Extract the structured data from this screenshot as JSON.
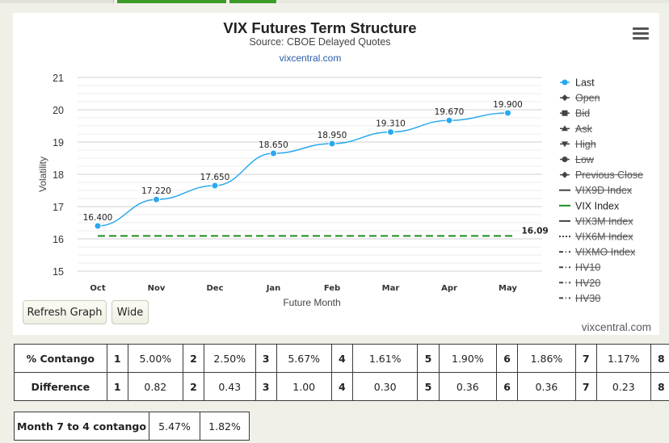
{
  "chart_data": {
    "type": "line",
    "title": "VIX Futures Term Structure",
    "subtitle": "Source: CBOE Delayed Quotes",
    "credit_link": "vixcentral.com",
    "xlabel": "Future Month",
    "ylabel": "Volatility",
    "ylim": [
      15,
      21
    ],
    "yticks": [
      15,
      16,
      17,
      18,
      19,
      20,
      21
    ],
    "categories": [
      "Oct",
      "Nov",
      "Dec",
      "Jan",
      "Feb",
      "Mar",
      "Apr",
      "May"
    ],
    "grid": true,
    "legend_position": "right",
    "series": [
      {
        "name": "Last",
        "values": [
          16.4,
          17.22,
          17.65,
          18.65,
          18.95,
          19.31,
          19.67,
          19.9
        ],
        "labels": [
          "16.400",
          "17.220",
          "17.650",
          "18.650",
          "18.950",
          "19.310",
          "19.670",
          "19.900"
        ],
        "color": "#2aa8ef"
      },
      {
        "name": "VIX Index",
        "value": 16.09,
        "label": "16.09",
        "color": "#1e8c1e"
      }
    ],
    "legend": [
      {
        "name": "Last",
        "symbol": "circle",
        "active": true
      },
      {
        "name": "Open",
        "symbol": "diamond",
        "active": false
      },
      {
        "name": "Bid",
        "symbol": "square",
        "active": false
      },
      {
        "name": "Ask",
        "symbol": "triangle",
        "active": false
      },
      {
        "name": "High",
        "symbol": "triangle-down",
        "active": false
      },
      {
        "name": "Low",
        "symbol": "circle",
        "active": false
      },
      {
        "name": "Previous Close",
        "symbol": "diamond",
        "active": false
      },
      {
        "name": "VIX9D Index",
        "symbol": "solid",
        "active": false
      },
      {
        "name": "VIX Index",
        "symbol": "solid",
        "active": true
      },
      {
        "name": "VIX3M Index",
        "symbol": "solid",
        "active": false
      },
      {
        "name": "VIX6M Index",
        "symbol": "dotted",
        "active": false
      },
      {
        "name": "VIXMO Index",
        "symbol": "dashdot",
        "active": false
      },
      {
        "name": "HV10",
        "symbol": "dashdot",
        "active": false
      },
      {
        "name": "HV20",
        "symbol": "dashdot",
        "active": false
      },
      {
        "name": "HV30",
        "symbol": "dashdot",
        "active": false
      }
    ]
  },
  "buttons": {
    "refresh": "Refresh Graph",
    "wide": "Wide"
  },
  "watermark": "vixcentral.com",
  "contango_table": {
    "rows": [
      {
        "label": "% Contango",
        "cells": [
          [
            "1",
            "5.00%"
          ],
          [
            "2",
            "2.50%"
          ],
          [
            "3",
            "5.67%"
          ],
          [
            "4",
            "1.61%"
          ],
          [
            "5",
            "1.90%"
          ],
          [
            "6",
            "1.86%"
          ],
          [
            "7",
            "1.17%"
          ],
          [
            "8",
            ""
          ]
        ]
      },
      {
        "label": "Difference",
        "cells": [
          [
            "1",
            "0.82"
          ],
          [
            "2",
            "0.43"
          ],
          [
            "3",
            "1.00"
          ],
          [
            "4",
            "0.30"
          ],
          [
            "5",
            "0.36"
          ],
          [
            "6",
            "0.36"
          ],
          [
            "7",
            "0.23"
          ],
          [
            "8",
            ""
          ]
        ]
      }
    ]
  },
  "month_table": {
    "label": "Month 7 to 4 contango",
    "values": [
      "5.47%",
      "1.82%"
    ]
  }
}
